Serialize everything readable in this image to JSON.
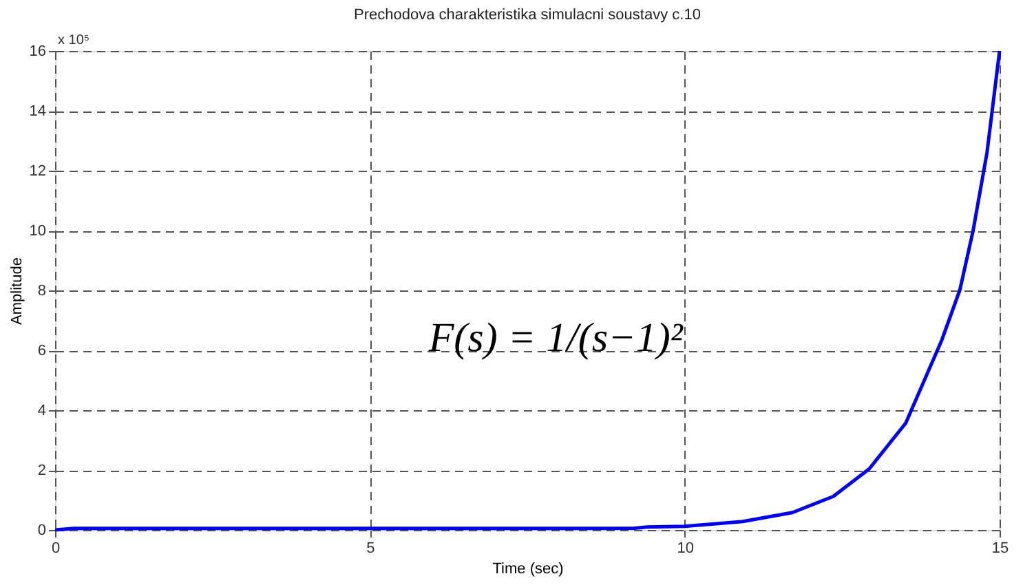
{
  "chart_data": {
    "type": "line",
    "title": "Prechodova charakteristika simulacni soustavy c.10",
    "xlabel": "Time (sec)",
    "ylabel": "Amplitude",
    "series": [
      {
        "color": "#0000ff",
        "x": [
          0,
          0.3,
          2,
          4,
          6,
          8,
          9.2,
          9.4,
          10,
          10.92,
          11.71,
          12.36,
          12.93,
          13.51,
          14.08,
          14.37,
          14.58,
          14.8,
          15
        ],
        "values": [
          0,
          0.05,
          0.05,
          0.05,
          0.05,
          0.05,
          0.06,
          0.1,
          0.12,
          0.28,
          0.58,
          1.12,
          2.04,
          3.57,
          6.33,
          8.02,
          10.0,
          12.6,
          16
        ]
      }
    ],
    "xlim": [
      0,
      15
    ],
    "xticks": [
      0,
      5,
      10,
      15
    ],
    "ylim": [
      0,
      16
    ],
    "yticks": [
      0,
      2,
      4,
      6,
      8,
      10,
      12,
      14,
      16
    ],
    "grid": true,
    "line_style": "solid",
    "marker": "none",
    "annotations": [
      "x 10⁵",
      "F(s) = 1/(s−1)²"
    ]
  }
}
